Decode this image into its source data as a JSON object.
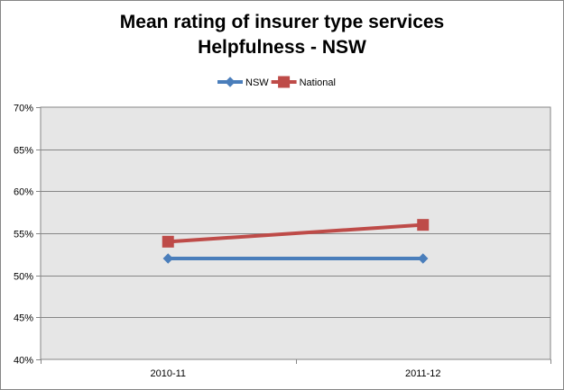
{
  "chart_data": {
    "type": "line",
    "title": "Mean rating of insurer type services",
    "subtitle": "Helpfulness - NSW",
    "categories": [
      "2010-11",
      "2011-12"
    ],
    "series": [
      {
        "name": "NSW",
        "values": [
          52,
          52
        ],
        "color": "#4a7ebb",
        "marker": "diamond"
      },
      {
        "name": "National",
        "values": [
          54,
          56
        ],
        "color": "#be4b48",
        "marker": "square"
      }
    ],
    "ylim": [
      40,
      70
    ],
    "yticks": [
      40,
      45,
      50,
      55,
      60,
      65,
      70
    ],
    "ytick_labels": [
      "40%",
      "45%",
      "50%",
      "55%",
      "60%",
      "65%",
      "70%"
    ],
    "xlabel": "",
    "ylabel": "",
    "grid": true,
    "legend_position": "top",
    "plot_background": "#e6e6e6"
  }
}
